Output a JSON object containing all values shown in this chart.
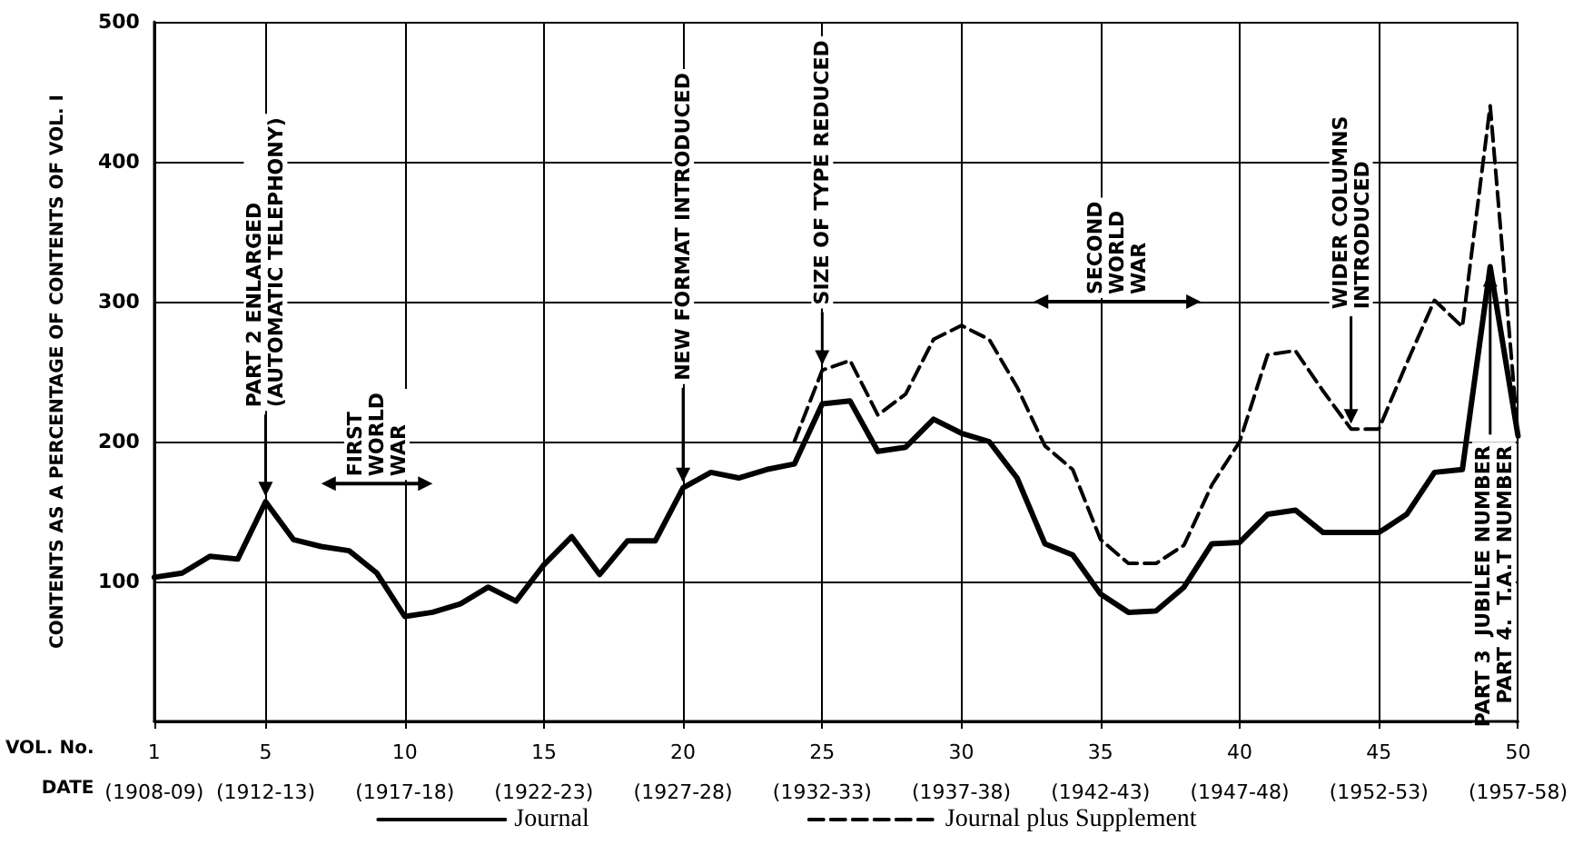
{
  "chart_data": {
    "type": "line",
    "xlabel": "VOL. No.\nDATE",
    "ylabel": "CONTENTS AS A PERCENTAGE OF CONTENTS OF VOL. I",
    "categories": [
      "1\n(1908-09)",
      null,
      null,
      null,
      "5\n(1912-13)",
      null,
      null,
      null,
      null,
      "10\n(1917-18)",
      null,
      null,
      null,
      null,
      "15\n(1922-23)",
      null,
      null,
      null,
      null,
      "20\n(1927-28)",
      null,
      null,
      null,
      null,
      "25\n(1932-33)",
      null,
      null,
      null,
      null,
      "30\n(1937-38)",
      null,
      null,
      null,
      null,
      "35\n(1942-43)",
      null,
      null,
      null,
      null,
      "40\n(1947-48)",
      null,
      null,
      null,
      null,
      "45\n(1952-53)",
      null,
      null,
      null,
      null,
      "50\n(1957-58)"
    ],
    "ylim": [
      0,
      500
    ],
    "yticks": [
      {
        "value": 0,
        "label": null
      },
      100,
      200,
      300,
      400,
      500
    ],
    "grid": true,
    "legend": "bottom",
    "marker": "none",
    "series": [
      {
        "name": "Journal",
        "color": "#000000",
        "line_style": "solid",
        "values": [
          103,
          106,
          118,
          116,
          157,
          130,
          125,
          122,
          106,
          75,
          78,
          84,
          96,
          86,
          112,
          132,
          105,
          129,
          129,
          167,
          178,
          174,
          180,
          184,
          227,
          229,
          193,
          196,
          216,
          206,
          200,
          174,
          127,
          119,
          91,
          78,
          79,
          96,
          127,
          128,
          148,
          151,
          135,
          135,
          135,
          148,
          178,
          180,
          325,
          204
        ]
      },
      {
        "name": "Journal plus Supplement",
        "color": "#000000",
        "line_style": "dashed",
        "values": [
          null,
          null,
          null,
          null,
          null,
          null,
          null,
          null,
          null,
          null,
          null,
          null,
          null,
          null,
          null,
          null,
          null,
          null,
          null,
          null,
          null,
          null,
          null,
          200,
          251,
          258,
          219,
          234,
          273,
          283,
          273,
          239,
          197,
          180,
          130,
          113,
          113,
          126,
          169,
          200,
          262,
          265,
          236,
          209,
          209,
          256,
          301,
          282,
          440,
          204
        ]
      }
    ],
    "annotations": [
      {
        "text": "PART 2 ENLARGED\n(AUTOMATIC TELEPHONY)",
        "x": "5\n(1912-13)",
        "y": 157
      },
      "FIRST\nWORLD\nWAR",
      {
        "text": "NEW FORMAT INTRODUCED",
        "x": "20\n(1927-28)",
        "y": 167
      },
      {
        "text": "SIZE OF TYPE REDUCED",
        "x": "25\n(1932-33)",
        "y": 251
      },
      "SECOND\nWORLD\nWAR",
      {
        "text": "WIDER COLUMNS\nINTRODUCED",
        "y": 209
      },
      {
        "text": "PART 3  JUBILEE NUMBER\nPART 4.  T.A.T NUMBER",
        "y": 325
      }
    ]
  }
}
